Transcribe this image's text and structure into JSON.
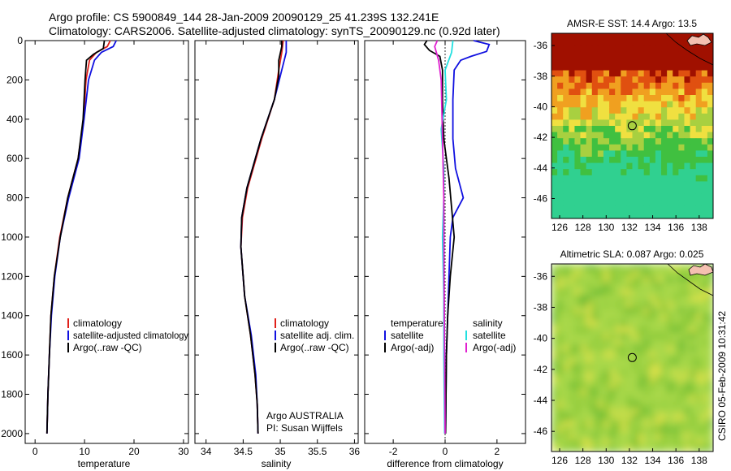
{
  "title_line1": "Argo profile: CS 5900849_144 28-Jan-2009 20090129_25 41.239S 132.241E",
  "title_line2": "Climatology: CARS2006. Satellite-adjusted climatology: synTS_20090129.nc (0.92d later)",
  "side_label": "CSIRO 05-Feb-2009 10:31:42",
  "depth_ticks": [
    0,
    200,
    400,
    600,
    800,
    1000,
    1200,
    1400,
    1600,
    1800,
    2000
  ],
  "colors": {
    "climatology": "#e0201a",
    "satellite": "#1010e0",
    "argo": "#000000",
    "sat_sal": "#22e0e0",
    "argo_sal": "#e020d0"
  },
  "chart_data": [
    {
      "type": "line",
      "xlabel": "temperature",
      "xlim": [
        -2,
        31
      ],
      "ylim": [
        2050,
        0
      ],
      "xticks": [
        0,
        10,
        20,
        30
      ],
      "legend": [
        "climatology",
        "satellite-adjusted climatology",
        "Argo(..raw -QC)"
      ],
      "series": [
        {
          "name": "climatology",
          "points": [
            [
              15.2,
              0
            ],
            [
              14.6,
              30
            ],
            [
              12.4,
              60
            ],
            [
              11.0,
              100
            ],
            [
              10.3,
              200
            ],
            [
              9.8,
              400
            ],
            [
              8.7,
              600
            ],
            [
              6.6,
              800
            ],
            [
              5.0,
              1000
            ],
            [
              3.9,
              1200
            ],
            [
              3.2,
              1400
            ],
            [
              2.9,
              1600
            ],
            [
              2.6,
              1800
            ],
            [
              2.4,
              2000
            ]
          ]
        },
        {
          "name": "satellite-adjusted climatology",
          "points": [
            [
              16.4,
              0
            ],
            [
              15.8,
              30
            ],
            [
              13.4,
              60
            ],
            [
              12.0,
              100
            ],
            [
              10.8,
              200
            ],
            [
              9.9,
              400
            ],
            [
              8.9,
              600
            ],
            [
              6.8,
              800
            ],
            [
              5.1,
              1000
            ],
            [
              4.0,
              1200
            ],
            [
              3.3,
              1400
            ],
            [
              2.9,
              1600
            ],
            [
              2.6,
              1800
            ],
            [
              2.4,
              2000
            ]
          ]
        },
        {
          "name": "Argo(..raw -QC)",
          "points": [
            [
              14.0,
              0
            ],
            [
              13.8,
              40
            ],
            [
              11.8,
              70
            ],
            [
              10.4,
              100
            ],
            [
              10.1,
              200
            ],
            [
              9.7,
              400
            ],
            [
              8.7,
              600
            ],
            [
              6.6,
              800
            ],
            [
              5.1,
              1000
            ],
            [
              3.9,
              1200
            ],
            [
              3.2,
              1400
            ],
            [
              2.9,
              1600
            ],
            [
              2.6,
              1800
            ],
            [
              2.4,
              2000
            ]
          ]
        }
      ]
    },
    {
      "type": "line",
      "xlabel": "salinity",
      "xlim": [
        33.85,
        36.05
      ],
      "ylim": [
        2050,
        0
      ],
      "xticks": [
        34,
        34.5,
        35,
        35.5,
        36
      ],
      "xticklabels": [
        "34",
        "34.5",
        "35",
        "35.5",
        "36"
      ],
      "legend": [
        "climatology",
        "satellite adj. clim.",
        "Argo(..raw -QC)"
      ],
      "annotations": [
        "Argo AUSTRALIA",
        "PI: Susan Wijffels"
      ],
      "series": [
        {
          "name": "climatology",
          "points": [
            [
              35.04,
              0
            ],
            [
              35.02,
              60
            ],
            [
              34.98,
              150
            ],
            [
              34.92,
              300
            ],
            [
              34.75,
              500
            ],
            [
              34.56,
              750
            ],
            [
              34.49,
              900
            ],
            [
              34.47,
              1050
            ],
            [
              34.52,
              1300
            ],
            [
              34.6,
              1500
            ],
            [
              34.66,
              1700
            ],
            [
              34.69,
              1850
            ],
            [
              34.7,
              2000
            ]
          ]
        },
        {
          "name": "satellite adj. clim.",
          "points": [
            [
              35.08,
              0
            ],
            [
              35.08,
              60
            ],
            [
              35.02,
              150
            ],
            [
              34.92,
              300
            ],
            [
              34.74,
              500
            ],
            [
              34.55,
              750
            ],
            [
              34.48,
              900
            ],
            [
              34.47,
              1050
            ],
            [
              34.52,
              1300
            ],
            [
              34.61,
              1500
            ],
            [
              34.67,
              1700
            ],
            [
              34.69,
              1850
            ],
            [
              34.7,
              2000
            ]
          ]
        },
        {
          "name": "Argo(..raw -QC)",
          "points": [
            [
              35.02,
              0
            ],
            [
              35.02,
              30
            ],
            [
              34.98,
              100
            ],
            [
              34.98,
              180
            ],
            [
              34.92,
              300
            ],
            [
              34.74,
              500
            ],
            [
              34.55,
              750
            ],
            [
              34.48,
              900
            ],
            [
              34.47,
              1050
            ],
            [
              34.52,
              1300
            ],
            [
              34.6,
              1500
            ],
            [
              34.66,
              1700
            ],
            [
              34.69,
              1850
            ],
            [
              34.7,
              2000
            ]
          ]
        }
      ]
    },
    {
      "type": "line",
      "xlabel": "difference from climatology",
      "xlim": [
        -3.1,
        3.1
      ],
      "ylim": [
        2050,
        0
      ],
      "xticks": [
        -2,
        0,
        2
      ],
      "legend_groups": [
        {
          "title": "temperature",
          "entries": [
            "satellite",
            "Argo(-adj)"
          ]
        },
        {
          "title": "salinity",
          "entries": [
            "satellite",
            "Argo(-adj)"
          ]
        }
      ],
      "series": [
        {
          "name": "temperature satellite",
          "points": [
            [
              1.1,
              0
            ],
            [
              1.7,
              20
            ],
            [
              1.6,
              55
            ],
            [
              1.0,
              80
            ],
            [
              0.6,
              100
            ],
            [
              0.35,
              150
            ],
            [
              0.3,
              300
            ],
            [
              0.3,
              500
            ],
            [
              0.4,
              650
            ],
            [
              0.7,
              800
            ],
            [
              0.3,
              900
            ],
            [
              0.2,
              1000
            ],
            [
              0.15,
              1200
            ],
            [
              0.1,
              1400
            ],
            [
              0.05,
              1600
            ],
            [
              0.02,
              2000
            ]
          ]
        },
        {
          "name": "temperature Argo(-adj)",
          "points": [
            [
              -0.7,
              0
            ],
            [
              -0.8,
              20
            ],
            [
              -0.6,
              50
            ],
            [
              -0.2,
              80
            ],
            [
              -0.1,
              150
            ],
            [
              -0.1,
              300
            ],
            [
              -0.05,
              500
            ],
            [
              0.15,
              700
            ],
            [
              0.25,
              850
            ],
            [
              0.35,
              1000
            ],
            [
              0.2,
              1200
            ],
            [
              0.1,
              1400
            ],
            [
              0.05,
              1600
            ],
            [
              0.02,
              2000
            ]
          ]
        },
        {
          "name": "salinity satellite",
          "points": [
            [
              0.3,
              0
            ],
            [
              0.25,
              60
            ],
            [
              0.0,
              150
            ],
            [
              0.05,
              300
            ],
            [
              -0.15,
              450
            ],
            [
              -0.05,
              650
            ],
            [
              -0.05,
              800
            ],
            [
              -0.1,
              1000
            ],
            [
              -0.05,
              1300
            ],
            [
              -0.05,
              1600
            ],
            [
              -0.02,
              2000
            ]
          ]
        },
        {
          "name": "salinity Argo(-adj)",
          "points": [
            [
              -0.3,
              0
            ],
            [
              -0.4,
              30
            ],
            [
              -0.25,
              100
            ],
            [
              -0.15,
              200
            ],
            [
              -0.1,
              500
            ],
            [
              -0.05,
              800
            ],
            [
              -0.04,
              1200
            ],
            [
              -0.02,
              1600
            ],
            [
              0.0,
              2000
            ]
          ]
        }
      ]
    },
    {
      "type": "heatmap",
      "title": "AMSR-E SST: 14.4  Argo: 13.5",
      "xlim": [
        125.3,
        139.2
      ],
      "ylim": [
        -47.3,
        -35.2
      ],
      "xticks": [
        126,
        128,
        130,
        132,
        134,
        136,
        138
      ],
      "yticks": [
        -36,
        -38,
        -40,
        -42,
        -44,
        -46
      ],
      "marker": [
        132.241,
        -41.239
      ]
    },
    {
      "type": "heatmap",
      "title": "Altimetric SLA: 0.087  Argo: 0.025",
      "xlim": [
        125.3,
        139.2
      ],
      "ylim": [
        -47.3,
        -35.2
      ],
      "xticks": [
        126,
        128,
        130,
        132,
        134,
        136,
        138
      ],
      "yticks": [
        -36,
        -38,
        -40,
        -42,
        -44,
        -46
      ],
      "marker": [
        132.241,
        -41.239
      ]
    }
  ]
}
